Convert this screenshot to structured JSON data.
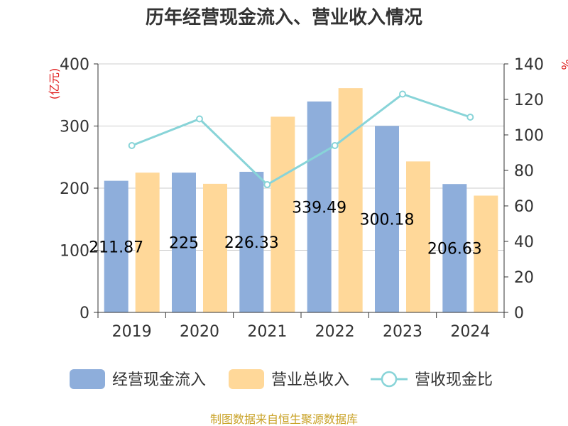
{
  "chart_data": {
    "type": "bar",
    "title": "历年经营现金流入、营业收入情况",
    "categories": [
      "2019",
      "2020",
      "2021",
      "2022",
      "2023",
      "2024"
    ],
    "series": [
      {
        "name": "经营现金流入",
        "type": "bar",
        "axis": "left",
        "color": "#8eaedb",
        "values": [
          211.87,
          225,
          226.33,
          339.49,
          300.18,
          206.63
        ],
        "labels": [
          "211.87",
          "225",
          "226.33",
          "339.49",
          "300.18",
          "206.63"
        ]
      },
      {
        "name": "营业总收入",
        "type": "bar",
        "axis": "left",
        "color": "#ffd899",
        "values": [
          225,
          207,
          315,
          361,
          243,
          188
        ]
      },
      {
        "name": "营收现金比",
        "type": "line",
        "axis": "right",
        "color": "#88d4d8",
        "values": [
          94,
          109,
          72,
          94,
          123,
          110
        ]
      }
    ],
    "y_left": {
      "label": "(亿元)",
      "min": 0,
      "max": 400,
      "ticks": [
        0,
        100,
        200,
        300,
        400
      ]
    },
    "y_right": {
      "label": "%",
      "min": 0,
      "max": 140,
      "ticks": [
        0,
        20,
        40,
        60,
        80,
        100,
        120,
        140
      ]
    },
    "grid": true,
    "legend_position": "bottom",
    "source": "制图数据来自恒生聚源数据库"
  }
}
